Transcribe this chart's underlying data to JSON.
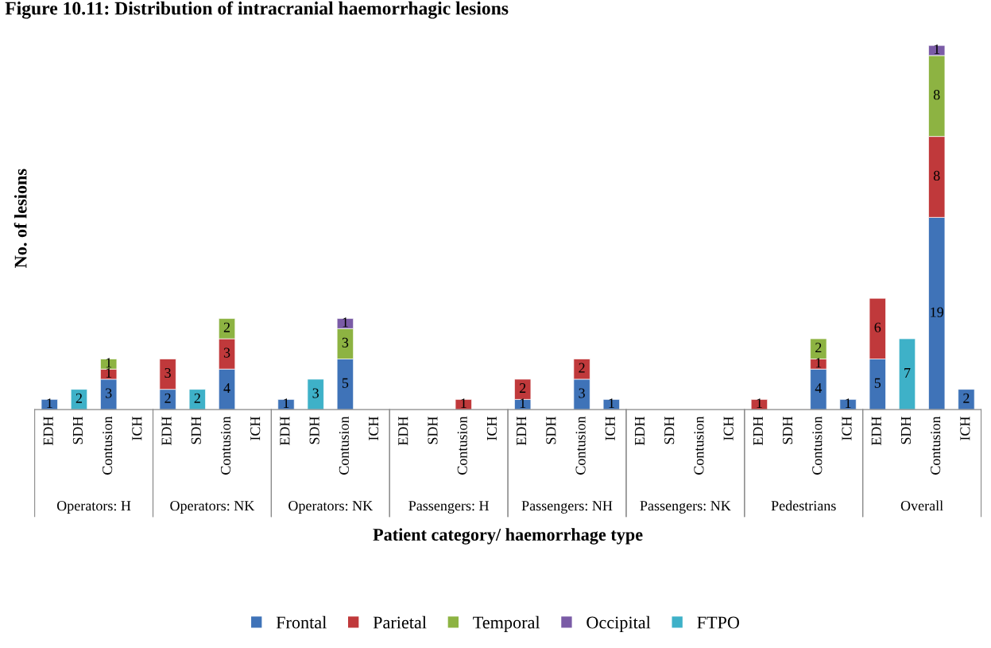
{
  "chart_data": {
    "type": "bar",
    "stacked": true,
    "title": "Figure 10.11: Distribution of intracranial haemorrhagic lesions",
    "xlabel": "Patient category/ haemorrhage type",
    "ylabel": "No. of lesions",
    "categories": [
      "EDH",
      "SDH",
      "Contusion",
      "ICH",
      "EDH",
      "SDH",
      "Contusion",
      "ICH",
      "EDH",
      "SDH",
      "Contusion",
      "ICH",
      "EDH",
      "SDH",
      "Contusion",
      "ICH",
      "EDH",
      "SDH",
      "Contusion",
      "ICH",
      "EDH",
      "SDH",
      "Contusion",
      "ICH",
      "EDH",
      "SDH",
      "Contusion",
      "ICH",
      "EDH",
      "SDH",
      "Contusion",
      "ICH"
    ],
    "annotations": [
      "Operators: H",
      "Operators: NK",
      "Operators: NK",
      "Passengers: H",
      "Passengers: NH",
      "Passengers: NK",
      "Pedestrians",
      "Overall"
    ],
    "series": [
      {
        "name": "Frontal",
        "color": "#3f73b8",
        "values": [
          1,
          null,
          3,
          null,
          2,
          null,
          4,
          null,
          1,
          null,
          5,
          null,
          null,
          null,
          null,
          null,
          1,
          null,
          3,
          1,
          null,
          null,
          null,
          null,
          null,
          null,
          4,
          1,
          5,
          null,
          19,
          2
        ]
      },
      {
        "name": "Parietal",
        "color": "#c0393b",
        "values": [
          null,
          null,
          1,
          null,
          3,
          null,
          3,
          null,
          null,
          null,
          null,
          null,
          null,
          null,
          1,
          null,
          2,
          null,
          2,
          null,
          null,
          null,
          null,
          null,
          1,
          null,
          1,
          null,
          6,
          null,
          8,
          null
        ]
      },
      {
        "name": "Temporal",
        "color": "#8db342",
        "values": [
          null,
          null,
          1,
          null,
          null,
          null,
          2,
          null,
          null,
          null,
          3,
          null,
          null,
          null,
          null,
          null,
          null,
          null,
          null,
          null,
          null,
          null,
          null,
          null,
          null,
          null,
          2,
          null,
          null,
          null,
          8,
          null
        ]
      },
      {
        "name": "Occipital",
        "color": "#7a5ba6",
        "values": [
          null,
          null,
          null,
          null,
          null,
          null,
          null,
          null,
          null,
          null,
          1,
          null,
          null,
          null,
          null,
          null,
          null,
          null,
          null,
          null,
          null,
          null,
          null,
          null,
          null,
          null,
          null,
          null,
          null,
          null,
          1,
          null
        ]
      },
      {
        "name": "FTPO",
        "color": "#3eb1c8",
        "values": [
          null,
          2,
          null,
          null,
          null,
          2,
          null,
          null,
          null,
          3,
          null,
          null,
          null,
          null,
          null,
          null,
          null,
          null,
          null,
          null,
          null,
          null,
          null,
          null,
          null,
          null,
          null,
          null,
          null,
          7,
          null,
          null
        ]
      }
    ],
    "tick_labels": "x",
    "data_labels": true,
    "legend": "bottom"
  }
}
